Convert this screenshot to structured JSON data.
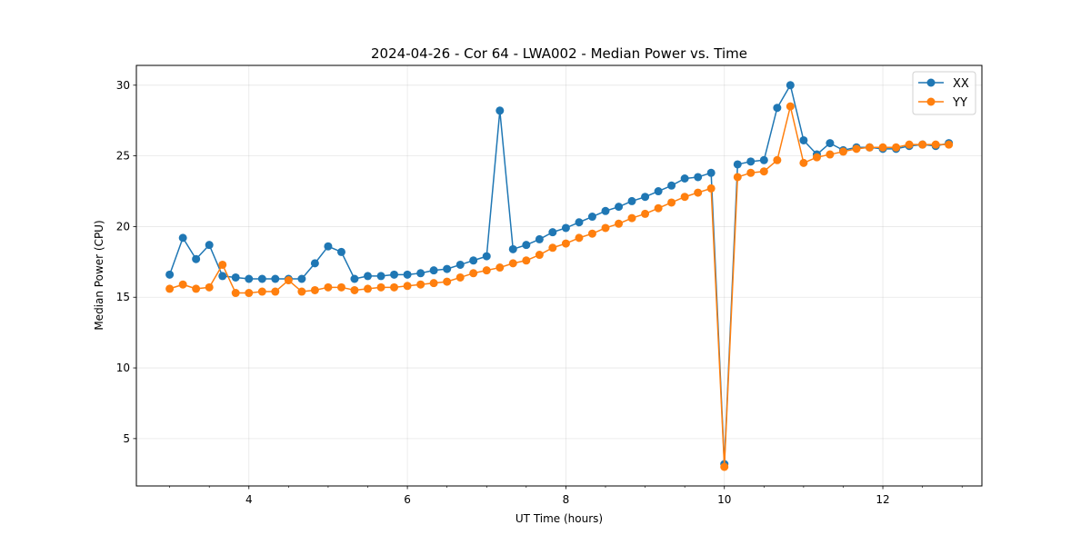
{
  "chart_data": {
    "type": "line",
    "title": "2024-04-26 - Cor 64 - LWA002 - Median Power vs. Time",
    "xlabel": "UT Time (hours)",
    "ylabel": "Median Power (CPU)",
    "xlim": [
      2.58,
      13.25
    ],
    "ylim": [
      1.65,
      31.4
    ],
    "xticks": [
      4,
      6,
      8,
      10,
      12
    ],
    "xtick_labels": [
      "4",
      "6",
      "8",
      "10",
      "12"
    ],
    "x_minor_step": 0.5,
    "yticks": [
      5,
      10,
      15,
      20,
      25,
      30
    ],
    "ytick_labels": [
      "5",
      "10",
      "15",
      "20",
      "25",
      "30"
    ],
    "grid": true,
    "legend_position": "top-right",
    "markers": "circle",
    "x": [
      3.0,
      3.167,
      3.333,
      3.5,
      3.667,
      3.833,
      4.0,
      4.167,
      4.333,
      4.5,
      4.667,
      4.833,
      5.0,
      5.167,
      5.333,
      5.5,
      5.667,
      5.833,
      6.0,
      6.167,
      6.333,
      6.5,
      6.667,
      6.833,
      7.0,
      7.167,
      7.333,
      7.5,
      7.667,
      7.833,
      8.0,
      8.167,
      8.333,
      8.5,
      8.667,
      8.833,
      9.0,
      9.167,
      9.333,
      9.5,
      9.667,
      9.833,
      10.0,
      10.167,
      10.333,
      10.5,
      10.667,
      10.833,
      11.0,
      11.167,
      11.333,
      11.5,
      11.667,
      11.833,
      12.0,
      12.167,
      12.333,
      12.5,
      12.667,
      12.833
    ],
    "series": [
      {
        "name": "XX",
        "color": "#1f77b4",
        "values": [
          16.6,
          19.2,
          17.7,
          18.7,
          16.5,
          16.4,
          16.3,
          16.3,
          16.3,
          16.3,
          16.3,
          17.4,
          18.6,
          18.2,
          16.3,
          16.5,
          16.5,
          16.6,
          16.6,
          16.7,
          16.9,
          17.0,
          17.3,
          17.6,
          17.9,
          28.2,
          18.4,
          18.7,
          19.1,
          19.6,
          19.9,
          20.3,
          20.7,
          21.1,
          21.4,
          21.8,
          22.1,
          22.5,
          22.9,
          23.4,
          23.5,
          23.8,
          3.2,
          24.4,
          24.6,
          24.7,
          28.4,
          30.0,
          26.1,
          25.1,
          25.9,
          25.4,
          25.6,
          25.6,
          25.5,
          25.5,
          25.7,
          25.8,
          25.7,
          25.9
        ]
      },
      {
        "name": "YY",
        "color": "#ff7f0e",
        "values": [
          15.6,
          15.9,
          15.6,
          15.7,
          17.3,
          15.3,
          15.3,
          15.4,
          15.4,
          16.2,
          15.4,
          15.5,
          15.7,
          15.7,
          15.5,
          15.6,
          15.7,
          15.7,
          15.8,
          15.9,
          16.0,
          16.1,
          16.4,
          16.7,
          16.9,
          17.1,
          17.4,
          17.6,
          18.0,
          18.5,
          18.8,
          19.2,
          19.5,
          19.9,
          20.2,
          20.6,
          20.9,
          21.3,
          21.7,
          22.1,
          22.4,
          22.7,
          3.0,
          23.5,
          23.8,
          23.9,
          24.7,
          28.5,
          24.5,
          24.9,
          25.1,
          25.3,
          25.5,
          25.6,
          25.6,
          25.6,
          25.8,
          25.8,
          25.8,
          25.8
        ]
      }
    ]
  }
}
